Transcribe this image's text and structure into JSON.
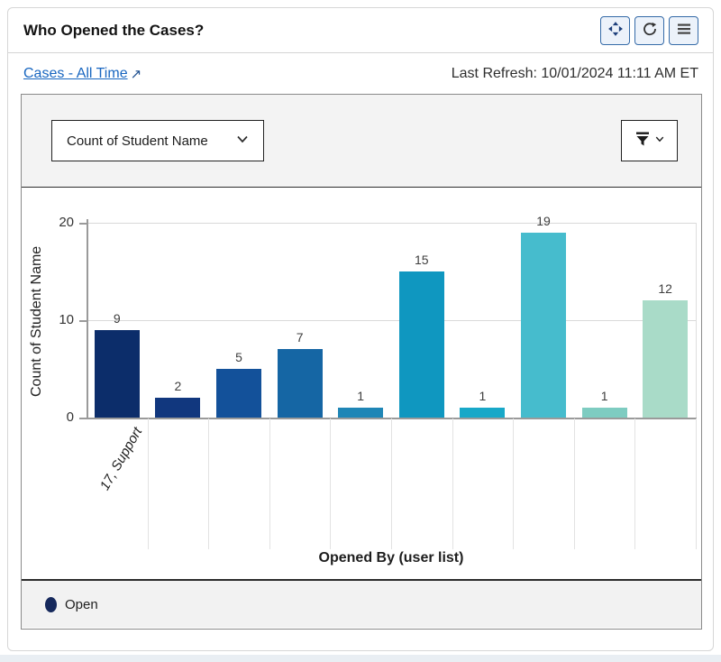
{
  "header": {
    "title": "Who Opened the Cases?"
  },
  "subheader": {
    "report_link": "Cases - All Time",
    "link_arrow": "↗",
    "last_refresh": "Last Refresh: 10/01/2024 11:11 AM ET"
  },
  "toolbar": {
    "measure_select": "Count of Student Name"
  },
  "icons": {
    "header_buttons": [
      "move-icon",
      "refresh-icon",
      "menu-icon"
    ],
    "dropdown": "chevron-down-icon",
    "filter_button": [
      "filter-icon",
      "chevron-down-icon"
    ],
    "link": "external-link-arrow-icon"
  },
  "legend": {
    "items": [
      {
        "label": "Open",
        "color": "#16295c"
      }
    ]
  },
  "colors": {
    "link": "#1866c0",
    "icon_navy": "#1d3f7a",
    "panel_border": "#8a8a8a",
    "toolbar_bg": "#f3f3f3",
    "legend_bg": "#f2f2f2",
    "dark_divider": "#2c2c2c"
  },
  "chart_data": {
    "type": "bar",
    "title": "Who Opened the Cases?",
    "categories": [
      "17, Support",
      "",
      "",
      "",
      "",
      "",
      "",
      "",
      "",
      ""
    ],
    "values": [
      9,
      2,
      5,
      7,
      1,
      15,
      1,
      19,
      1,
      12
    ],
    "bar_colors": [
      "#0c2d6a",
      "#11377e",
      "#13519a",
      "#1566a4",
      "#1f86b6",
      "#0f97c0",
      "#18a8c8",
      "#46bccd",
      "#7eccc1",
      "#a9dbc8"
    ],
    "xlabel": "Opened By (user list)",
    "ylabel": "Count of Student Name",
    "ylim": [
      0,
      20
    ],
    "yticks": [
      0,
      10,
      20
    ],
    "grid": true,
    "series_name": "Open",
    "legend_position": "bottom"
  }
}
